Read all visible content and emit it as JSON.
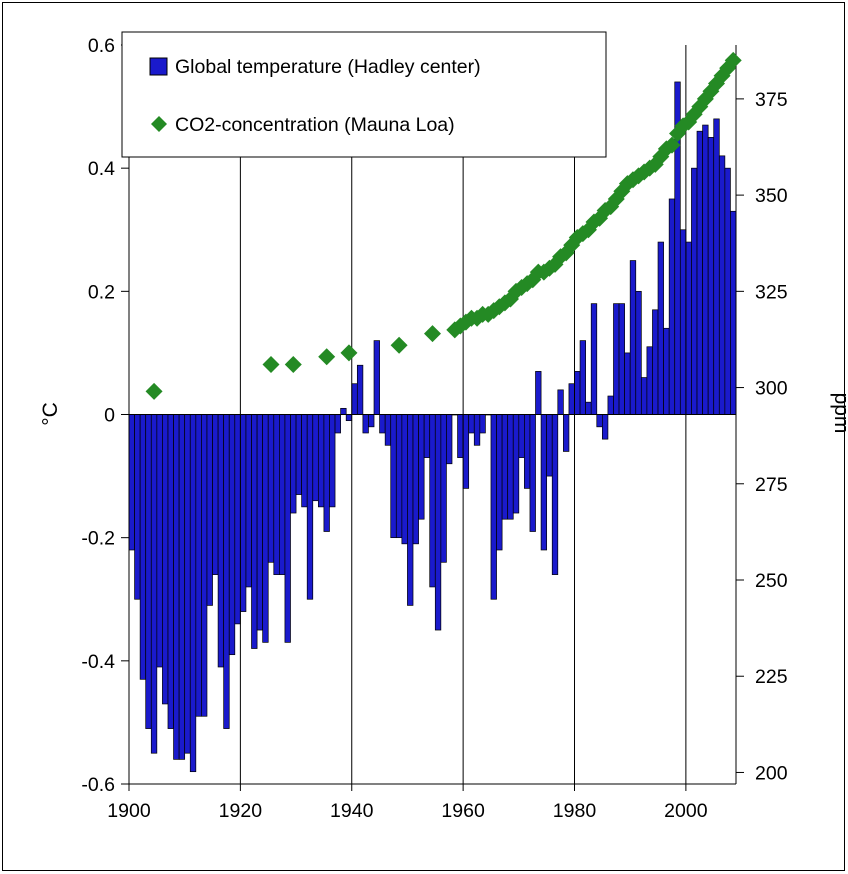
{
  "colors": {
    "temperature_bar": "#1a1acc",
    "co2_marker": "#248a24",
    "grid": "#000000",
    "background": "#ffffff"
  },
  "chart_data": {
    "type": "bar+scatter",
    "title": "",
    "xlabel": "",
    "ylabel_left": "°C",
    "ylabel_right": "ppm",
    "grid": "vertical gridlines at x ticks",
    "legend_placement": "top",
    "x_ticks": [
      "1900",
      "1920",
      "1940",
      "1960",
      "1980",
      "2000"
    ],
    "xlim": [
      1900,
      2009
    ],
    "y_left_ticks": [
      "-0.6",
      "-0.4",
      "-0.2",
      "0",
      "0.2",
      "0.4",
      "0.6"
    ],
    "ylim_left": [
      -0.6,
      0.6
    ],
    "y_right_ticks": [
      "200",
      "225",
      "250",
      "275",
      "300",
      "325",
      "350",
      "375"
    ],
    "ylim_right": [
      197,
      389
    ],
    "legend": {
      "temperature": "Global temperature (Hadley center)",
      "co2": "CO2-concentration (Mauna Loa)"
    },
    "temperature_series": {
      "name": "Global temperature (Hadley center)",
      "axis": "left",
      "years": [
        1900,
        1901,
        1902,
        1903,
        1904,
        1905,
        1906,
        1907,
        1908,
        1909,
        1910,
        1911,
        1912,
        1913,
        1914,
        1915,
        1916,
        1917,
        1918,
        1919,
        1920,
        1921,
        1922,
        1923,
        1924,
        1925,
        1926,
        1927,
        1928,
        1929,
        1930,
        1931,
        1932,
        1933,
        1934,
        1935,
        1936,
        1937,
        1938,
        1939,
        1940,
        1941,
        1942,
        1943,
        1944,
        1945,
        1946,
        1947,
        1948,
        1949,
        1950,
        1951,
        1952,
        1953,
        1954,
        1955,
        1956,
        1957,
        1958,
        1959,
        1960,
        1961,
        1962,
        1963,
        1964,
        1965,
        1966,
        1967,
        1968,
        1969,
        1970,
        1971,
        1972,
        1973,
        1974,
        1975,
        1976,
        1977,
        1978,
        1979,
        1980,
        1981,
        1982,
        1983,
        1984,
        1985,
        1986,
        1987,
        1988,
        1989,
        1990,
        1991,
        1992,
        1993,
        1994,
        1995,
        1996,
        1997,
        1998,
        1999,
        2000,
        2001,
        2002,
        2003,
        2004,
        2005,
        2006,
        2007,
        2008
      ],
      "values": [
        -0.22,
        -0.3,
        -0.43,
        -0.51,
        -0.55,
        -0.41,
        -0.47,
        -0.51,
        -0.56,
        -0.56,
        -0.55,
        -0.58,
        -0.49,
        -0.49,
        -0.31,
        -0.26,
        -0.41,
        -0.51,
        -0.39,
        -0.34,
        -0.32,
        -0.28,
        -0.38,
        -0.35,
        -0.37,
        -0.24,
        -0.26,
        -0.26,
        -0.37,
        -0.16,
        -0.13,
        -0.15,
        -0.3,
        -0.14,
        -0.15,
        -0.19,
        -0.15,
        -0.03,
        0.01,
        -0.01,
        0.05,
        0.08,
        -0.03,
        -0.02,
        0.12,
        -0.03,
        -0.05,
        -0.2,
        -0.2,
        -0.21,
        -0.31,
        -0.21,
        -0.17,
        -0.07,
        -0.28,
        -0.35,
        -0.24,
        -0.08,
        0.0,
        -0.07,
        -0.12,
        -0.03,
        -0.05,
        -0.03,
        0.0,
        -0.3,
        -0.22,
        -0.17,
        -0.17,
        -0.16,
        -0.07,
        -0.12,
        -0.19,
        0.07,
        -0.22,
        -0.1,
        -0.26,
        0.04,
        -0.06,
        0.05,
        0.07,
        0.12,
        0.02,
        0.18,
        -0.02,
        -0.04,
        0.03,
        0.18,
        0.18,
        0.1,
        0.25,
        0.2,
        0.06,
        0.11,
        0.17,
        0.28,
        0.14,
        0.35,
        0.54,
        0.3,
        0.28,
        0.4,
        0.46,
        0.47,
        0.45,
        0.48,
        0.42,
        0.4,
        0.33
      ]
    },
    "co2_series": {
      "name": "CO2-concentration (Mauna Loa)",
      "axis": "right",
      "years": [
        1904,
        1925,
        1929,
        1935,
        1939,
        1948,
        1954,
        1958,
        1959,
        1960,
        1961,
        1962,
        1963,
        1964,
        1965,
        1966,
        1967,
        1968,
        1969,
        1970,
        1971,
        1972,
        1973,
        1974,
        1975,
        1976,
        1977,
        1978,
        1979,
        1980,
        1981,
        1982,
        1983,
        1984,
        1985,
        1986,
        1987,
        1988,
        1989,
        1990,
        1991,
        1992,
        1993,
        1994,
        1995,
        1996,
        1997,
        1998,
        1999,
        2000,
        2001,
        2002,
        2003,
        2004,
        2005,
        2006,
        2007,
        2008
      ],
      "values": [
        299,
        306,
        306,
        308,
        309,
        311,
        314,
        315,
        316,
        317,
        318,
        318,
        319,
        319,
        320,
        321,
        322,
        323,
        325,
        326,
        327,
        328,
        330,
        330,
        331,
        332,
        334,
        335,
        337,
        339,
        340,
        341,
        343,
        344,
        346,
        347,
        349,
        351,
        353,
        354,
        355,
        356,
        357,
        358,
        360,
        362,
        363,
        366,
        368,
        369,
        371,
        373,
        375,
        377,
        379,
        381,
        383,
        385
      ]
    }
  }
}
